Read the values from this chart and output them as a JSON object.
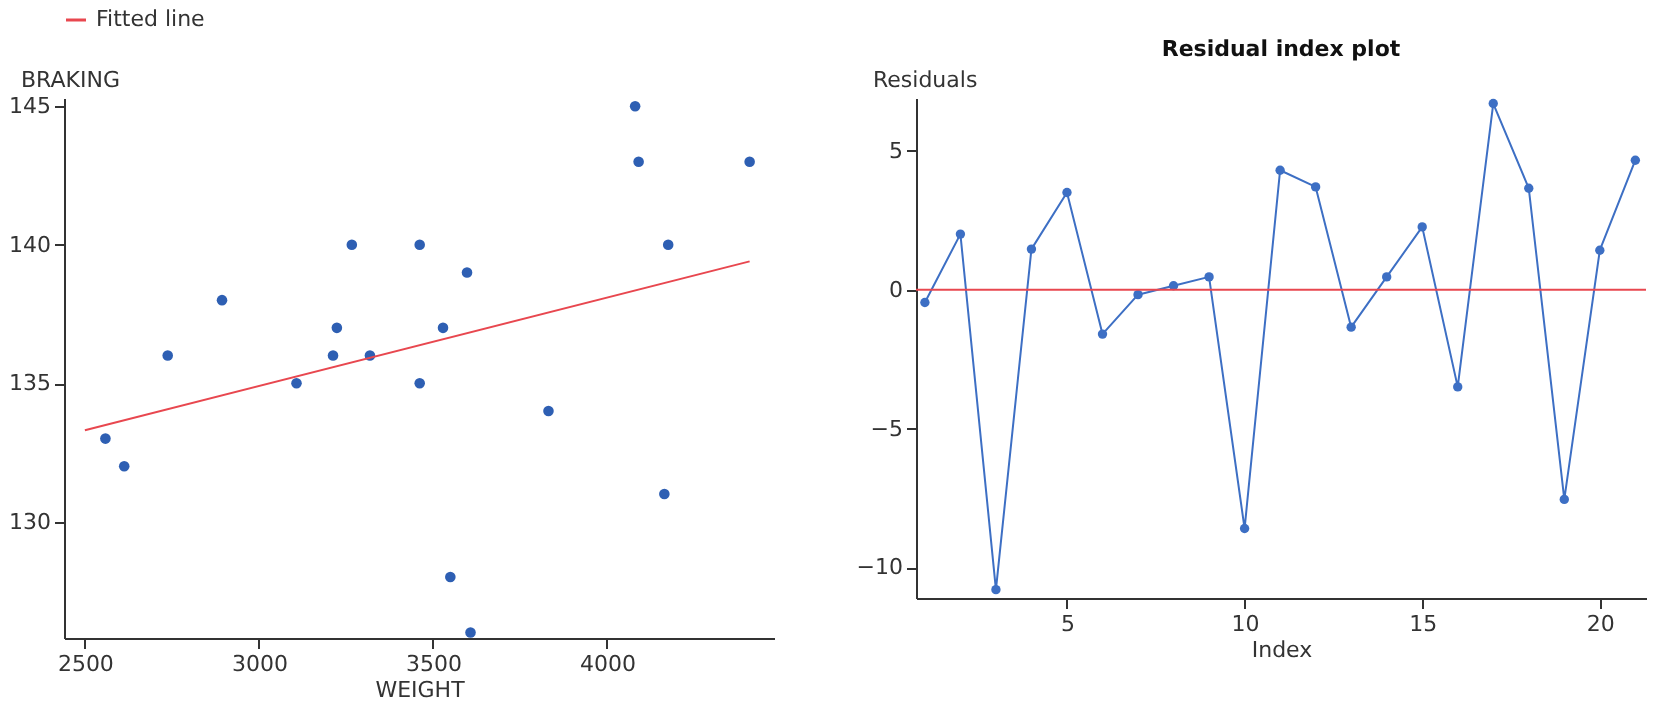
{
  "chart_data": [
    {
      "type": "scatter",
      "xlabel": "WEIGHT",
      "ylabel": "BRAKING",
      "xlim": [
        2440,
        4480
      ],
      "ylim": [
        125.8,
        145.3
      ],
      "xticks": [
        2500,
        3000,
        3500,
        4000
      ],
      "yticks": [
        130,
        135,
        140,
        145
      ],
      "grid": false,
      "legend": "top",
      "series": [
        {
          "color": "#2e5fb3",
          "marker": "circle",
          "x": [
            4081,
            4091,
            4410,
            3267,
            3462,
            4176,
            3598,
            2894,
            3224,
            3529,
            2738,
            3213,
            3319,
            3108,
            3462,
            3832,
            2559,
            2613,
            4165,
            3550,
            3608
          ],
          "values": [
            145,
            143,
            143,
            140,
            140,
            140,
            139,
            138,
            137,
            137,
            136,
            136,
            136,
            135,
            135,
            134,
            133,
            132,
            131,
            128,
            126
          ]
        },
        {
          "name": "Fitted line",
          "type": "line",
          "color": "#e8474f",
          "x": [
            2500,
            4410
          ],
          "values": [
            133.3,
            139.4
          ]
        }
      ]
    },
    {
      "type": "line",
      "title": "Residual index plot",
      "xlabel": "Index",
      "ylabel": "Residuals",
      "xlim": [
        0.75,
        21.3
      ],
      "ylim": [
        -11.1,
        6.9
      ],
      "xticks": [
        5,
        10,
        15,
        20
      ],
      "yticks": [
        -10,
        -5,
        0,
        5
      ],
      "grid": false,
      "marker": "circle",
      "x": [
        1,
        2,
        3,
        4,
        5,
        6,
        7,
        8,
        9,
        10,
        11,
        12,
        13,
        14,
        15,
        16,
        17,
        18,
        19,
        20,
        21
      ],
      "series": [
        {
          "color": "#3d6fc4",
          "values": [
            -0.46,
            2.0,
            -10.8,
            1.46,
            3.5,
            -1.6,
            -0.18,
            0.14,
            0.46,
            -8.6,
            4.3,
            3.7,
            -1.35,
            0.46,
            2.26,
            -3.5,
            6.7,
            3.65,
            -7.55,
            1.42,
            4.66
          ]
        }
      ],
      "ref_lines": [
        {
          "axis": "y",
          "value": 0,
          "color": "#e8474f"
        }
      ]
    }
  ]
}
